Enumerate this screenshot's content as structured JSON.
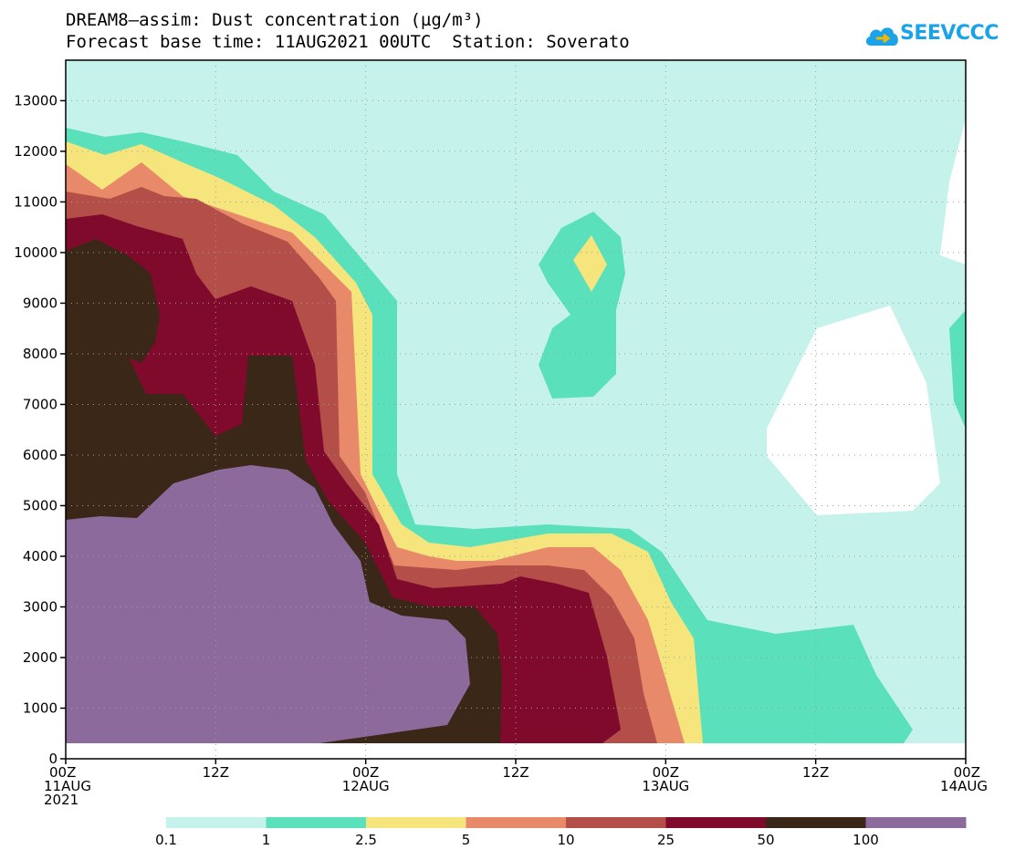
{
  "header": {
    "title_line1": "DREAM8–assim: Dust concentration (µg/m³)",
    "title_line2": "Forecast base time: 11AUG2021 00UTC  Station: Soverato"
  },
  "logo": {
    "text": "SEEVCCC",
    "icon": "cloud-icon"
  },
  "chart_data": {
    "type": "heatmap",
    "title": "DREAM8–assim: Dust concentration (µg/m³)",
    "subtitle": "Forecast base time: 11AUG2021 00UTC  Station: Soverato",
    "x_ticks": [
      {
        "hours": 0,
        "lines": [
          "00Z",
          "11AUG",
          "2021"
        ]
      },
      {
        "hours": 12,
        "lines": [
          "12Z"
        ]
      },
      {
        "hours": 24,
        "lines": [
          "00Z",
          "12AUG"
        ]
      },
      {
        "hours": 36,
        "lines": [
          "12Z"
        ]
      },
      {
        "hours": 48,
        "lines": [
          "00Z",
          "13AUG"
        ]
      },
      {
        "hours": 60,
        "lines": [
          "12Z"
        ]
      },
      {
        "hours": 72,
        "lines": [
          "00Z",
          "14AUG"
        ]
      }
    ],
    "xlim_hours": [
      0,
      72
    ],
    "ylim": [
      0,
      13800
    ],
    "y_ticks": [
      0,
      1000,
      2000,
      3000,
      4000,
      5000,
      6000,
      7000,
      8000,
      9000,
      10000,
      11000,
      12000,
      13000
    ],
    "grid": true,
    "colorbar": {
      "position": "bottom",
      "levels": [
        "0.1",
        "1",
        "2.5",
        "5",
        "10",
        "25",
        "50",
        "100"
      ],
      "colors": [
        "#c6f2ec",
        "#5be0bc",
        "#f5e57c",
        "#e8896a",
        "#b44e48",
        "#7f0a2c",
        "#3b2717",
        "#8c6a9c"
      ]
    },
    "contour_fill": {
      "background_below_0.1": "#ffffff",
      "bands": [
        {
          "min": 0.1,
          "max": 1,
          "color": "#c6f2ec"
        },
        {
          "min": 1,
          "max": 2.5,
          "color": "#5be0bc"
        },
        {
          "min": 2.5,
          "max": 5,
          "color": "#f5e57c"
        },
        {
          "min": 5,
          "max": 10,
          "color": "#e8896a"
        },
        {
          "min": 10,
          "max": 25,
          "color": "#b44e48"
        },
        {
          "min": 25,
          "max": 50,
          "color": "#7f0a2c"
        },
        {
          "min": 50,
          "max": 100,
          "color": "#3b2717"
        },
        {
          "min": 100,
          "max": null,
          "color": "#8c6a9c"
        }
      ]
    }
  }
}
